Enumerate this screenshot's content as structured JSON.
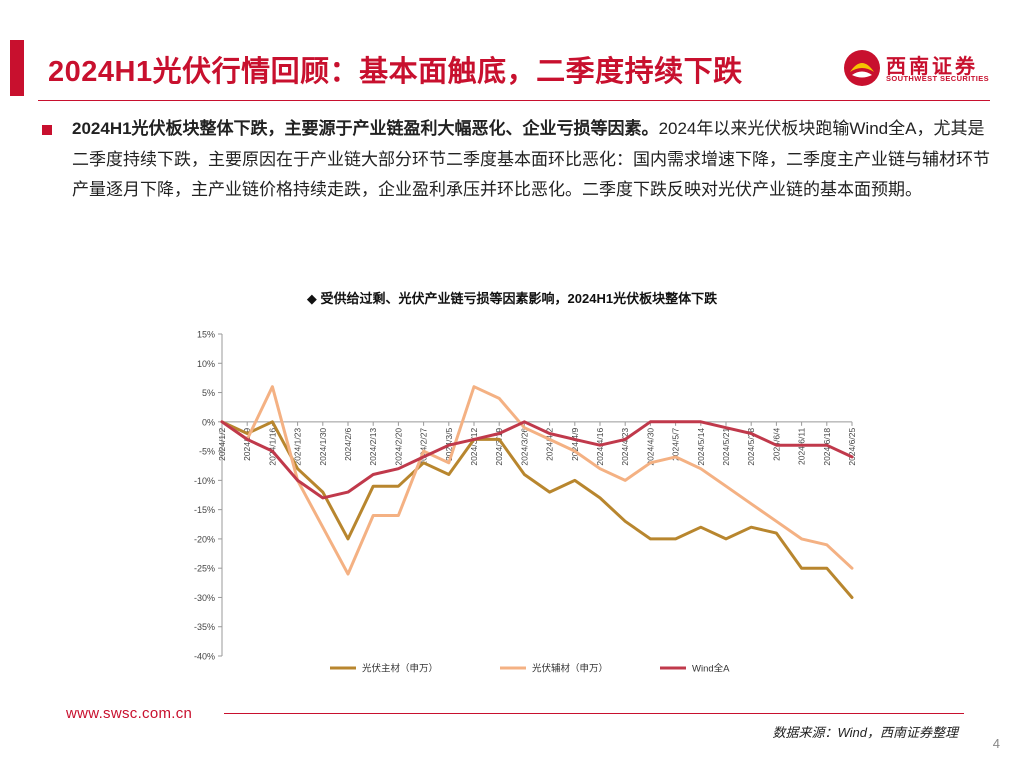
{
  "header": {
    "title": "2024H1光伏行情回顾：基本面触底，二季度持续下跌",
    "logo_cn": "西南证券",
    "logo_en": "SOUTHWEST SECURITIES"
  },
  "body": {
    "bold_text": "2024H1光伏板块整体下跌，主要源于产业链盈利大幅恶化、企业亏损等因素。",
    "normal_text": "2024年以来光伏板块跑输Wind全A，尤其是二季度持续下跌，主要原因在于产业链大部分环节二季度基本面环比恶化：国内需求增速下降，二季度主产业链与辅材环节产量逐月下降，主产业链价格持续走跌，企业盈利承压并环比恶化。二季度下跌反映对光伏产业链的基本面预期。"
  },
  "chart_title": "◆ 受供给过剩、光伏产业链亏损等因素影响，2024H1光伏板块整体下跌",
  "chart_data": {
    "type": "line",
    "title": "受供给过剩、光伏产业链亏损等因素影响，2024H1光伏板块整体下跌",
    "xlabel": "",
    "ylabel": "",
    "ylim": [
      -40,
      15
    ],
    "yticks": [
      "15%",
      "10%",
      "5%",
      "0%",
      "-5%",
      "-10%",
      "-15%",
      "-20%",
      "-25%",
      "-30%",
      "-35%",
      "-40%"
    ],
    "categories": [
      "2024/1/2",
      "2024/1/9",
      "2024/1/16",
      "2024/1/23",
      "2024/1/30",
      "2024/2/6",
      "2024/2/13",
      "2024/2/20",
      "2024/2/27",
      "2024/3/5",
      "2024/3/12",
      "2024/3/19",
      "2024/3/26",
      "2024/4/2",
      "2024/4/9",
      "2024/4/16",
      "2024/4/23",
      "2024/4/30",
      "2024/5/7",
      "2024/5/14",
      "2024/5/21",
      "2024/5/28",
      "2024/6/4",
      "2024/6/11",
      "2024/6/18",
      "2024/6/25"
    ],
    "series": [
      {
        "name": "光伏主材（申万）",
        "color": "#b8862e",
        "values": [
          0,
          -2,
          0,
          -8,
          -12,
          -20,
          -11,
          -11,
          -7,
          -9,
          -3,
          -3,
          -9,
          -12,
          -10,
          -13,
          -17,
          -20,
          -20,
          -18,
          -20,
          -18,
          -19,
          -25,
          -25,
          -30
        ]
      },
      {
        "name": "光伏辅材（申万）",
        "color": "#f4b183",
        "values": [
          0,
          -3,
          6,
          -10,
          -18,
          -26,
          -16,
          -16,
          -5,
          -7,
          6,
          4,
          -1,
          -3,
          -5,
          -8,
          -10,
          -7,
          -6,
          -8,
          -11,
          -14,
          -17,
          -20,
          -21,
          -25
        ]
      },
      {
        "name": "Wind全A",
        "color": "#c0394b",
        "values": [
          0,
          -3,
          -5,
          -10,
          -13,
          -12,
          -9,
          -8,
          -6,
          -4,
          -3,
          -2,
          0,
          -2,
          -3,
          -4,
          -3,
          0,
          0,
          0,
          -1,
          -2,
          -4,
          -4,
          -4,
          -6
        ]
      }
    ],
    "legend": "bottom"
  },
  "footer": {
    "website": "www.swsc.com.cn",
    "source": "数据来源：Wind，西南证券整理",
    "page_number": "4"
  },
  "colors": {
    "brand": "#c8102e",
    "grid": "#d9d9d9"
  }
}
